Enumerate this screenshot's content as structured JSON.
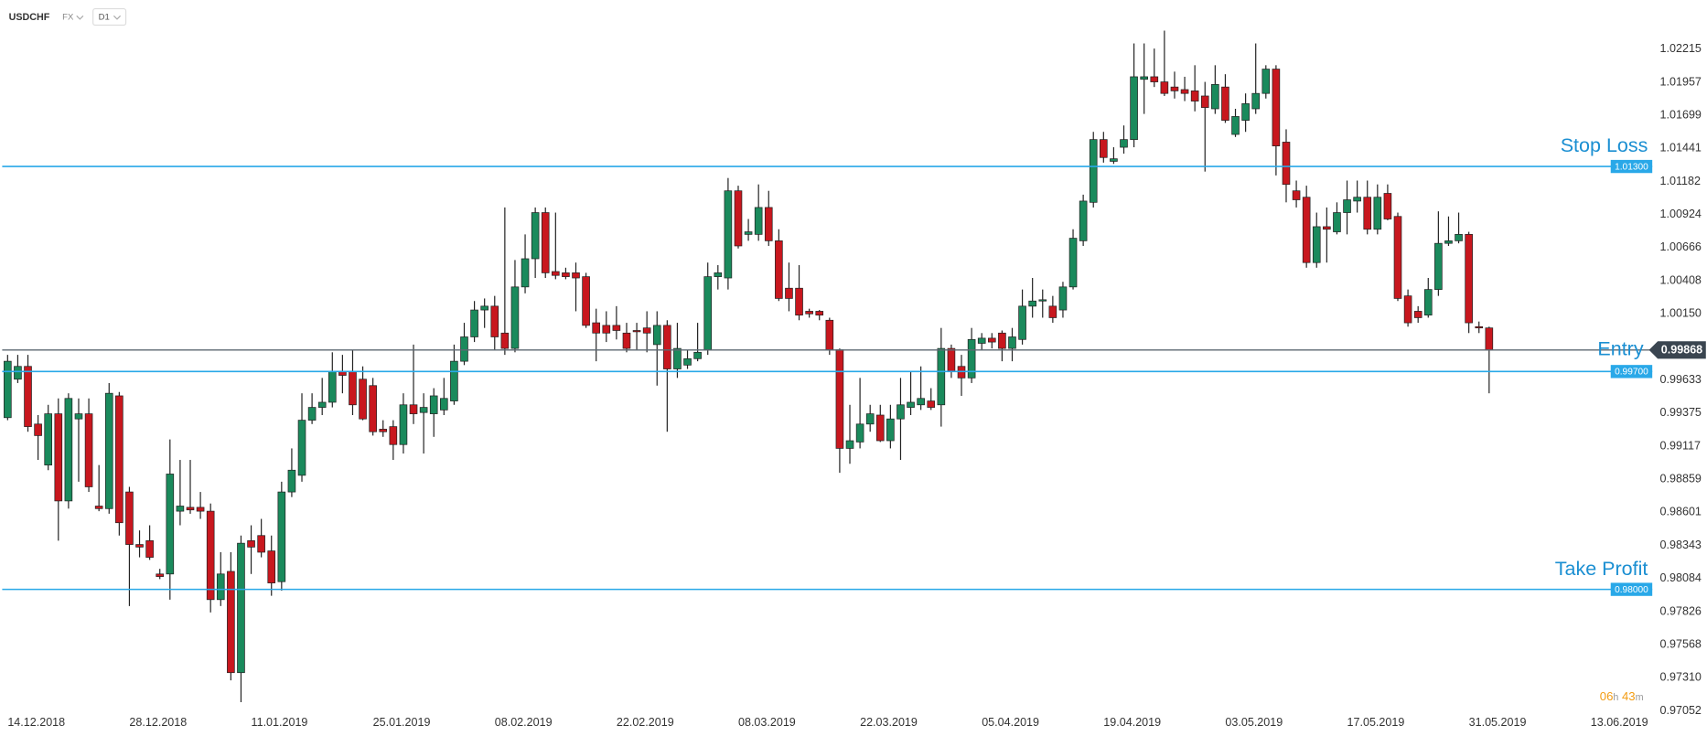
{
  "header": {
    "symbol": "USDCHF",
    "market": "FX",
    "timeframe": "D1"
  },
  "countdown": [
    "06",
    "h",
    "43",
    "m"
  ],
  "chart_data": {
    "type": "candlestick",
    "up_color": "#1a8a5c",
    "down_color": "#c8171e",
    "xlim": [
      -0.75,
      161
    ],
    "ylim": [
      0.97052,
      1.02599
    ],
    "grid": false,
    "xticks": [
      {
        "value": 0,
        "label": "14.12.2018"
      },
      {
        "value": 12,
        "label": "28.12.2018"
      },
      {
        "value": 24,
        "label": "11.01.2019"
      },
      {
        "value": 36,
        "label": "25.01.2019"
      },
      {
        "value": 48,
        "label": "08.02.2019"
      },
      {
        "value": 60,
        "label": "22.02.2019"
      },
      {
        "value": 72,
        "label": "08.03.2019"
      },
      {
        "value": 84,
        "label": "22.03.2019"
      },
      {
        "value": 96,
        "label": "05.04.2019"
      },
      {
        "value": 108,
        "label": "19.04.2019"
      },
      {
        "value": 120,
        "label": "03.05.2019"
      },
      {
        "value": 132,
        "label": "17.05.2019"
      },
      {
        "value": 144,
        "label": "31.05.2019"
      },
      {
        "value": 156,
        "label": "13.06.2019"
      }
    ],
    "yticks": [
      1.02215,
      1.01957,
      1.01699,
      1.01441,
      1.01182,
      1.00924,
      1.00666,
      1.00408,
      {
        "value": 1.0015,
        "label": "1.00150"
      },
      0.99633,
      0.99375,
      0.99117,
      0.98859,
      0.98601,
      0.98343,
      0.98084,
      0.97826,
      0.97568,
      {
        "value": 0.9731,
        "label": "0.97310"
      },
      0.97052
    ],
    "levels": [
      {
        "name": "Stop Loss",
        "value": 1.013,
        "label": "1.01300",
        "color": "#29a8e8"
      },
      {
        "value": 0.997,
        "label": "0.99700",
        "color": "#29a8e8"
      },
      {
        "name": "Take Profit",
        "value": 0.98,
        "label": "0.98000",
        "color": "#29a8e8"
      }
    ],
    "last_price": {
      "name": "Entry",
      "value": 0.99868,
      "label": "0.99868",
      "color": "#5d6872"
    },
    "ohlc": [
      [
        0.9934,
        0.9983,
        0.9932,
        0.9978
      ],
      [
        0.9964,
        0.9983,
        0.9961,
        0.9974
      ],
      [
        0.9974,
        0.9983,
        0.9923,
        0.9927
      ],
      [
        0.9929,
        0.9936,
        0.9901,
        0.992
      ],
      [
        0.9897,
        0.9944,
        0.9893,
        0.9937
      ],
      [
        0.9937,
        0.9949,
        0.9838,
        0.9869
      ],
      [
        0.9869,
        0.9953,
        0.9863,
        0.9949
      ],
      [
        0.9933,
        0.9949,
        0.9884,
        0.9937
      ],
      [
        0.9937,
        0.9949,
        0.9876,
        0.988
      ],
      [
        0.9865,
        0.9897,
        0.9861,
        0.9863
      ],
      [
        0.9863,
        0.9961,
        0.9859,
        0.9953
      ],
      [
        0.9951,
        0.9954,
        0.9842,
        0.9852
      ],
      [
        0.9876,
        0.988,
        0.9787,
        0.9835
      ],
      [
        0.9835,
        0.9846,
        0.9825,
        0.9833
      ],
      [
        0.9838,
        0.985,
        0.9823,
        0.9825
      ],
      [
        0.9812,
        0.9816,
        0.9808,
        0.981
      ],
      [
        0.9812,
        0.9917,
        0.9792,
        0.989
      ],
      [
        0.9861,
        0.9901,
        0.985,
        0.9865
      ],
      [
        0.9864,
        0.9901,
        0.9859,
        0.9862
      ],
      [
        0.9864,
        0.9876,
        0.9855,
        0.9861
      ],
      [
        0.9861,
        0.9867,
        0.9782,
        0.9792
      ],
      [
        0.9792,
        0.9829,
        0.9787,
        0.9812
      ],
      [
        0.9814,
        0.9829,
        0.9729,
        0.9735
      ],
      [
        0.9735,
        0.9842,
        0.9712,
        0.9836
      ],
      [
        0.9838,
        0.985,
        0.9812,
        0.9833
      ],
      [
        0.9842,
        0.9855,
        0.9825,
        0.9829
      ],
      [
        0.983,
        0.9842,
        0.9795,
        0.9805
      ],
      [
        0.9806,
        0.9884,
        0.9799,
        0.9876
      ],
      [
        0.9876,
        0.991,
        0.9872,
        0.9893
      ],
      [
        0.9889,
        0.9953,
        0.9884,
        0.9932
      ],
      [
        0.9932,
        0.9953,
        0.9929,
        0.9942
      ],
      [
        0.9942,
        0.9965,
        0.9936,
        0.9946
      ],
      [
        0.9946,
        0.9985,
        0.9942,
        0.997
      ],
      [
        0.997,
        0.9983,
        0.9953,
        0.9967
      ],
      [
        0.997,
        0.9987,
        0.9936,
        0.9944
      ],
      [
        0.9964,
        0.9974,
        0.9932,
        0.9933
      ],
      [
        0.9959,
        0.9965,
        0.992,
        0.9923
      ],
      [
        0.9925,
        0.9932,
        0.9919,
        0.9923
      ],
      [
        0.9927,
        0.9932,
        0.9901,
        0.9913
      ],
      [
        0.9913,
        0.9953,
        0.9906,
        0.9944
      ],
      [
        0.9944,
        0.9991,
        0.9929,
        0.9937
      ],
      [
        0.9938,
        0.9953,
        0.9906,
        0.9942
      ],
      [
        0.9937,
        0.9957,
        0.9919,
        0.9951
      ],
      [
        0.994,
        0.9965,
        0.9936,
        0.9949
      ],
      [
        0.9947,
        0.9991,
        0.9944,
        0.9978
      ],
      [
        0.9978,
        1.0008,
        0.9975,
        0.9997
      ],
      [
        0.9997,
        1.0025,
        0.9993,
        1.0018
      ],
      [
        1.0018,
        1.0027,
        1.0004,
        1.0021
      ],
      [
        1.0021,
        1.0029,
        0.9987,
        0.9997
      ],
      [
        1.0,
        1.0098,
        0.9983,
        0.9988
      ],
      [
        0.9988,
        1.0057,
        0.9985,
        1.0036
      ],
      [
        1.0036,
        1.0077,
        1.0031,
        1.0058
      ],
      [
        1.0058,
        1.0098,
        1.0043,
        1.0094
      ],
      [
        1.0094,
        1.0098,
        1.0043,
        1.0047
      ],
      [
        1.0048,
        1.0094,
        1.0042,
        1.0045
      ],
      [
        1.0047,
        1.0051,
        1.0042,
        1.0044
      ],
      [
        1.0047,
        1.0055,
        1.0017,
        1.0043
      ],
      [
        1.0044,
        1.0047,
        1.0004,
        1.0006
      ],
      [
        1.0008,
        1.0019,
        0.9978,
        1.0
      ],
      [
        1.0006,
        1.0017,
        0.9993,
        1.0
      ],
      [
        1.0006,
        1.0021,
        0.9995,
        1.0002
      ],
      [
        1.0,
        1.0008,
        0.9985,
        0.9988
      ],
      [
        1.0002,
        1.0008,
        0.9987,
        1.0001
      ],
      [
        1.0004,
        1.0017,
        0.9985,
        1.0
      ],
      [
        0.9991,
        1.0017,
        0.9959,
        1.0006
      ],
      [
        1.0006,
        1.001,
        0.9923,
        0.9972
      ],
      [
        0.9972,
        1.0008,
        0.9965,
        0.9988
      ],
      [
        0.9975,
        0.9987,
        0.9972,
        0.998
      ],
      [
        0.998,
        1.0008,
        0.9978,
        0.9985
      ],
      [
        0.9987,
        1.0055,
        0.9983,
        1.0044
      ],
      [
        1.0044,
        1.0053,
        1.0034,
        1.0047
      ],
      [
        1.0043,
        1.0121,
        1.0034,
        1.0111
      ],
      [
        1.0111,
        1.0115,
        1.0066,
        1.0068
      ],
      [
        1.0077,
        1.0089,
        1.0072,
        1.0079
      ],
      [
        1.0077,
        1.0116,
        1.0072,
        1.0098
      ],
      [
        1.0098,
        1.0111,
        1.0068,
        1.0072
      ],
      [
        1.0072,
        1.0081,
        1.0025,
        1.0027
      ],
      [
        1.0035,
        1.0055,
        1.0017,
        1.0027
      ],
      [
        1.0035,
        1.0053,
        1.001,
        1.0014
      ],
      [
        1.0017,
        1.0019,
        1.0012,
        1.0015
      ],
      [
        1.0017,
        1.0018,
        1.001,
        1.0014
      ],
      [
        1.001,
        1.0012,
        0.9983,
        0.9987
      ],
      [
        0.9987,
        0.9988,
        0.9891,
        0.991
      ],
      [
        0.991,
        0.9944,
        0.9898,
        0.9916
      ],
      [
        0.9915,
        0.9965,
        0.991,
        0.9929
      ],
      [
        0.9929,
        0.9944,
        0.9923,
        0.9937
      ],
      [
        0.9936,
        0.9944,
        0.9915,
        0.9916
      ],
      [
        0.9916,
        0.9944,
        0.991,
        0.9933
      ],
      [
        0.9933,
        0.9965,
        0.9901,
        0.9944
      ],
      [
        0.9942,
        0.997,
        0.9936,
        0.9946
      ],
      [
        0.9944,
        0.9974,
        0.994,
        0.9949
      ],
      [
        0.9947,
        0.9957,
        0.994,
        0.9942
      ],
      [
        0.9944,
        1.0004,
        0.9927,
        0.9988
      ],
      [
        0.9988,
        0.9991,
        0.9965,
        0.997
      ],
      [
        0.9974,
        0.9983,
        0.9951,
        0.9965
      ],
      [
        0.9965,
        1.0004,
        0.9961,
        0.9995
      ],
      [
        0.9992,
        1.0,
        0.9987,
        0.9996
      ],
      [
        0.9996,
        1.0,
        0.9988,
        0.9993
      ],
      [
        1.0,
        1.0002,
        0.9978,
        0.9988
      ],
      [
        0.9988,
        1.0004,
        0.9978,
        0.9997
      ],
      [
        0.9995,
        1.0034,
        0.9991,
        1.0021
      ],
      [
        1.0021,
        1.0043,
        1.0012,
        1.0025
      ],
      [
        1.0025,
        1.0034,
        1.0012,
        1.0026
      ],
      [
        1.0021,
        1.0029,
        1.0008,
        1.0012
      ],
      [
        1.0018,
        1.004,
        1.0012,
        1.0036
      ],
      [
        1.0036,
        1.0081,
        1.0034,
        1.0074
      ],
      [
        1.0072,
        1.0108,
        1.0068,
        1.0103
      ],
      [
        1.0102,
        1.0157,
        1.0098,
        1.0151
      ],
      [
        1.0151,
        1.0157,
        1.0133,
        1.0137
      ],
      [
        1.0134,
        1.0145,
        1.0132,
        1.0136
      ],
      [
        1.0145,
        1.0162,
        1.014,
        1.0151
      ],
      [
        1.0151,
        1.0226,
        1.0145,
        1.02
      ],
      [
        1.0198,
        1.0226,
        1.0171,
        1.02
      ],
      [
        1.02,
        1.0222,
        1.0192,
        1.0196
      ],
      [
        1.0196,
        1.0236,
        1.0185,
        1.0187
      ],
      [
        1.0192,
        1.0204,
        1.0183,
        1.0189
      ],
      [
        1.019,
        1.02,
        1.0181,
        1.0187
      ],
      [
        1.0189,
        1.0209,
        1.0173,
        1.0181
      ],
      [
        1.0185,
        1.0196,
        1.0126,
        1.0176
      ],
      [
        1.0175,
        1.0209,
        1.0171,
        1.0194
      ],
      [
        1.0192,
        1.0202,
        1.0164,
        1.0166
      ],
      [
        1.0155,
        1.0175,
        1.0153,
        1.0169
      ],
      [
        1.0166,
        1.0187,
        1.0157,
        1.0179
      ],
      [
        1.0175,
        1.0226,
        1.0171,
        1.0187
      ],
      [
        1.0187,
        1.0209,
        1.0183,
        1.0206
      ],
      [
        1.0206,
        1.0209,
        1.0123,
        1.0146
      ],
      [
        1.0149,
        1.0159,
        1.0102,
        1.0116
      ],
      [
        1.0111,
        1.0119,
        1.0098,
        1.0104
      ],
      [
        1.0106,
        1.0115,
        1.0051,
        1.0055
      ],
      [
        1.0055,
        1.0094,
        1.0051,
        1.0083
      ],
      [
        1.0083,
        1.0098,
        1.0055,
        1.0081
      ],
      [
        1.0079,
        1.0102,
        1.0077,
        1.0094
      ],
      [
        1.0094,
        1.0119,
        1.0077,
        1.0104
      ],
      [
        1.0103,
        1.0119,
        1.0094,
        1.0106
      ],
      [
        1.0106,
        1.0119,
        1.0077,
        1.0081
      ],
      [
        1.0081,
        1.0116,
        1.0077,
        1.0106
      ],
      [
        1.0109,
        1.0116,
        1.0088,
        1.0089
      ],
      [
        1.0091,
        1.0094,
        1.0025,
        1.0027
      ],
      [
        1.0029,
        1.0034,
        1.0005,
        1.0008
      ],
      [
        1.0017,
        1.0021,
        1.0008,
        1.0012
      ],
      [
        1.0014,
        1.0043,
        1.0012,
        1.0034
      ],
      [
        1.0034,
        1.0095,
        1.0029,
        1.007
      ],
      [
        1.007,
        1.0091,
        1.0068,
        1.0072
      ],
      [
        1.0072,
        1.0094,
        1.007,
        1.0077
      ],
      [
        1.0077,
        1.0079,
        1.0,
        1.0008
      ],
      [
        1.0005,
        1.0009,
        1.0,
        1.0004
      ],
      [
        1.0004,
        1.0005,
        0.9953,
        0.99868
      ]
    ]
  }
}
